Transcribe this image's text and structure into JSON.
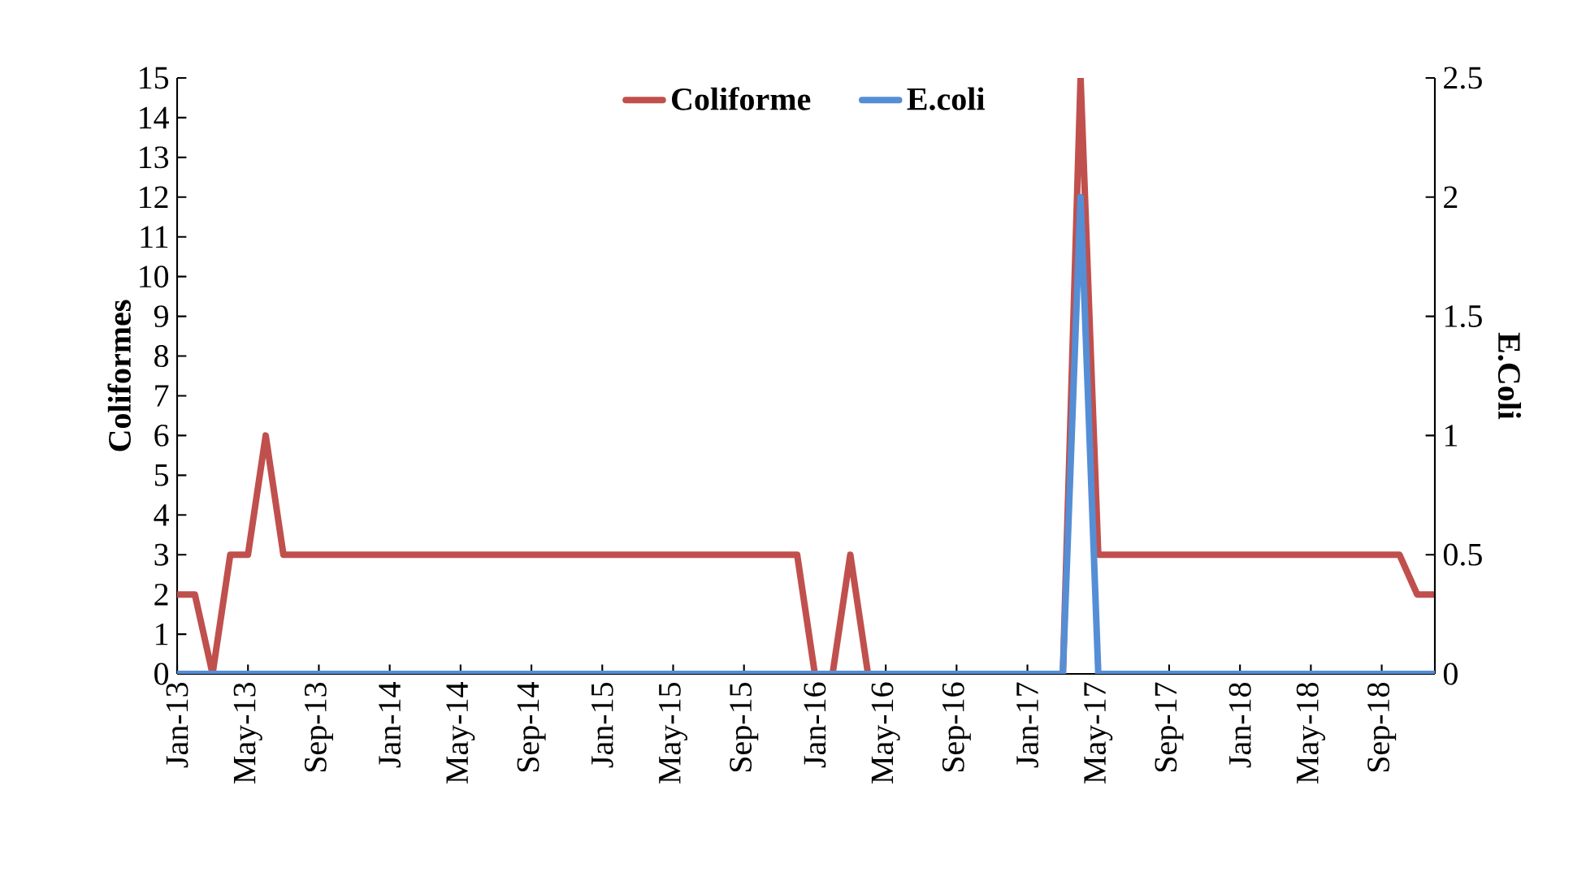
{
  "chart_data": {
    "type": "line",
    "ylabel": "Coliformes",
    "y2label": "E.Coli",
    "x": [
      "2013-01",
      "2013-02",
      "2013-03",
      "2013-04",
      "2013-05",
      "2013-06",
      "2013-07",
      "2013-08",
      "2013-09",
      "2013-10",
      "2013-11",
      "2013-12",
      "2014-01",
      "2014-02",
      "2014-03",
      "2014-04",
      "2014-05",
      "2014-06",
      "2014-07",
      "2014-08",
      "2014-09",
      "2014-10",
      "2014-11",
      "2014-12",
      "2015-01",
      "2015-02",
      "2015-03",
      "2015-04",
      "2015-05",
      "2015-06",
      "2015-07",
      "2015-08",
      "2015-09",
      "2015-10",
      "2015-11",
      "2015-12",
      "2016-01",
      "2016-02",
      "2016-03",
      "2016-04",
      "2016-05",
      "2016-06",
      "2016-07",
      "2016-08",
      "2016-09",
      "2016-10",
      "2016-11",
      "2016-12",
      "2017-01",
      "2017-02",
      "2017-03",
      "2017-04",
      "2017-05",
      "2017-06",
      "2017-07",
      "2017-08",
      "2017-09",
      "2017-10",
      "2017-11",
      "2017-12",
      "2018-01",
      "2018-02",
      "2018-03",
      "2018-04",
      "2018-05",
      "2018-06",
      "2018-07",
      "2018-08",
      "2018-09",
      "2018-10",
      "2018-11",
      "2018-12"
    ],
    "series": [
      {
        "name": "Coliforme",
        "color": "#c0504d",
        "values": [
          2,
          2,
          0,
          3,
          3,
          6,
          3,
          3,
          3,
          3,
          3,
          3,
          3,
          3,
          3,
          3,
          3,
          3,
          3,
          3,
          3,
          3,
          3,
          3,
          3,
          3,
          3,
          3,
          3,
          3,
          3,
          3,
          3,
          3,
          3,
          3,
          0,
          0,
          3,
          0,
          0,
          0,
          0,
          0,
          0,
          0,
          0,
          0,
          0,
          0,
          0,
          15,
          3,
          3,
          3,
          3,
          3,
          3,
          3,
          3,
          3,
          3,
          3,
          3,
          3,
          3,
          3,
          3,
          3,
          3,
          2,
          2
        ]
      },
      {
        "name": "E.coli",
        "color": "#558ed5",
        "axis": "y2",
        "values": [
          0,
          0,
          0,
          0,
          0,
          0,
          0,
          0,
          0,
          0,
          0,
          0,
          0,
          0,
          0,
          0,
          0,
          0,
          0,
          0,
          0,
          0,
          0,
          0,
          0,
          0,
          0,
          0,
          0,
          0,
          0,
          0,
          0,
          0,
          0,
          0,
          0,
          0,
          0,
          0,
          0,
          0,
          0,
          0,
          0,
          0,
          0,
          0,
          0,
          0,
          0,
          2,
          0,
          0,
          0,
          0,
          0,
          0,
          0,
          0,
          0,
          0,
          0,
          0,
          0,
          0,
          0,
          0,
          0,
          0,
          0,
          0
        ]
      }
    ],
    "xlim": [
      "2013-01",
      "2018-12"
    ],
    "xticks": [
      {
        "value": "2013-01",
        "label": "Jan-13"
      },
      {
        "value": "2013-05",
        "label": "May-13"
      },
      {
        "value": "2013-09",
        "label": "Sep-13"
      },
      {
        "value": "2014-01",
        "label": "Jan-14"
      },
      {
        "value": "2014-05",
        "label": "May-14"
      },
      {
        "value": "2014-09",
        "label": "Sep-14"
      },
      {
        "value": "2015-01",
        "label": "Jan-15"
      },
      {
        "value": "2015-05",
        "label": "May-15"
      },
      {
        "value": "2015-09",
        "label": "Sep-15"
      },
      {
        "value": "2016-01",
        "label": "Jan-16"
      },
      {
        "value": "2016-05",
        "label": "May-16"
      },
      {
        "value": "2016-09",
        "label": "Sep-16"
      },
      {
        "value": "2017-01",
        "label": "Jan-17"
      },
      {
        "value": "2017-05",
        "label": "May-17"
      },
      {
        "value": "2017-09",
        "label": "Sep-17"
      },
      {
        "value": "2018-01",
        "label": "Jan-18"
      },
      {
        "value": "2018-05",
        "label": "May-18"
      },
      {
        "value": "2018-09",
        "label": "Sep-18"
      }
    ],
    "ylim": [
      0,
      15
    ],
    "yticks": [
      0,
      1,
      2,
      3,
      4,
      5,
      6,
      7,
      8,
      9,
      10,
      11,
      12,
      13,
      14,
      15
    ],
    "y2lim": [
      0,
      2.5
    ],
    "y2ticks": [
      0,
      0.5,
      1,
      1.5,
      2,
      2.5
    ],
    "legend": "top",
    "line_style": "solid"
  }
}
